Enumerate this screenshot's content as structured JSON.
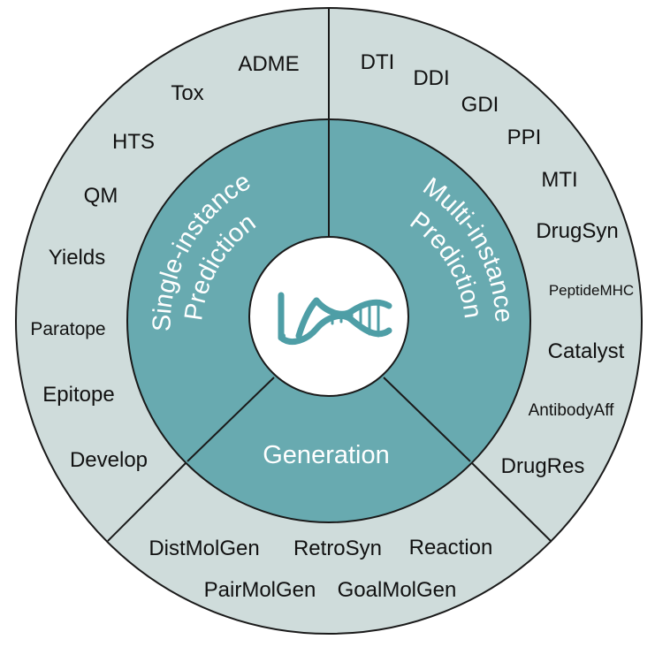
{
  "colors": {
    "outer_ring": "#cfdcdb",
    "inner_ring": "#68aab0",
    "center": "#ffffff",
    "stroke": "#1a1a1a",
    "logo": "#4e9ea6"
  },
  "center_logo": {
    "icon": "tdc-dna-logo"
  },
  "categories": {
    "single": [
      "Single-instance",
      "Prediction"
    ],
    "multi": [
      "Multi-instance",
      "Prediction"
    ],
    "generation": [
      "Generation"
    ]
  },
  "tasks": {
    "single": [
      "ADME",
      "Tox",
      "HTS",
      "QM",
      "Yields",
      "Paratope",
      "Epitope",
      "Develop"
    ],
    "multi": [
      "DTI",
      "DDI",
      "GDI",
      "PPI",
      "MTI",
      "DrugSyn",
      "PeptideMHC",
      "Catalyst",
      "AntibodyAff",
      "DrugRes"
    ],
    "generation": [
      "DistMolGen",
      "RetroSyn",
      "Reaction",
      "PairMolGen",
      "GoalMolGen"
    ]
  }
}
